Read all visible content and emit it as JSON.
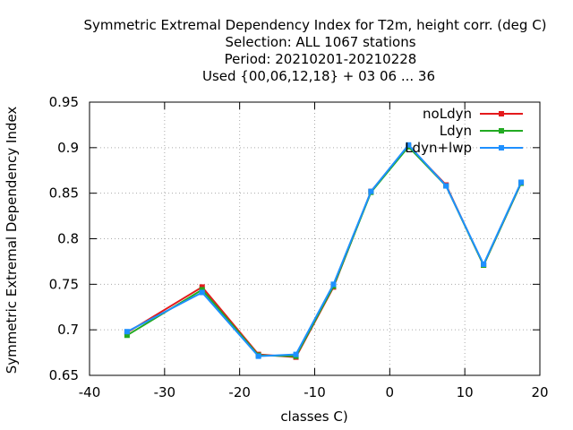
{
  "chart_data": {
    "type": "line",
    "title_lines": [
      "Symmetric Extremal Dependency Index  for T2m, height corr. (deg C)",
      "Selection: ALL   1067 stations",
      "Period: 20210201-20210228",
      "Used {00,06,12,18} + 03 06 ... 36"
    ],
    "xlabel": "classes C)",
    "ylabel": "Symmetric Extremal Dependency Index",
    "xlim": [
      -40,
      20
    ],
    "ylim": [
      0.65,
      0.95
    ],
    "xticks": [
      -40,
      -30,
      -20,
      -10,
      0,
      10,
      20
    ],
    "yticks": [
      "0.65",
      "0.7",
      "0.75",
      "0.8",
      "0.85",
      "0.9",
      "0.95"
    ],
    "grid": true,
    "legend_position": "top-right",
    "x": [
      -35,
      -25,
      -17.5,
      -12.5,
      -7.5,
      -2.5,
      2.5,
      7.5,
      12.5,
      17.5
    ],
    "series": [
      {
        "name": "noLdyn",
        "color": "#e41a1c",
        "values": [
          0.697,
          0.747,
          0.673,
          0.67,
          0.747,
          0.852,
          0.902,
          0.859,
          0.771,
          0.861
        ]
      },
      {
        "name": "Ldyn",
        "color": "#22aa22",
        "values": [
          0.694,
          0.744,
          0.672,
          0.671,
          0.748,
          0.851,
          0.901,
          0.858,
          0.771,
          0.861
        ]
      },
      {
        "name": "Ldyn+lwp",
        "color": "#1e90ff",
        "values": [
          0.698,
          0.741,
          0.671,
          0.673,
          0.75,
          0.852,
          0.903,
          0.858,
          0.772,
          0.862
        ]
      }
    ]
  }
}
